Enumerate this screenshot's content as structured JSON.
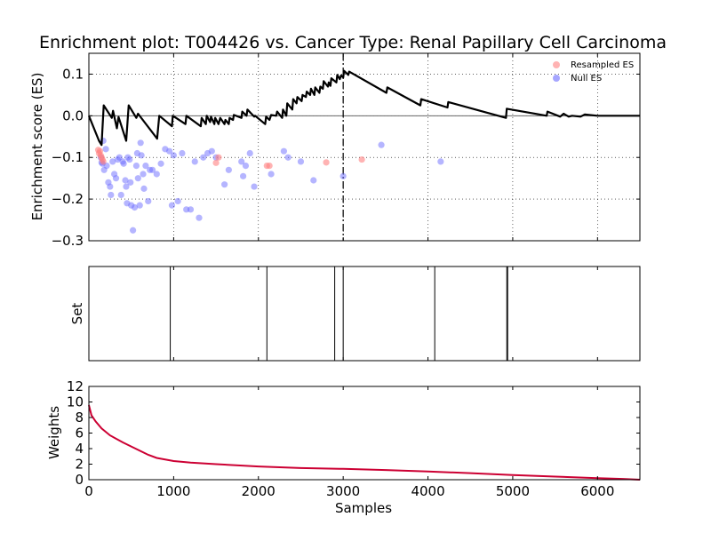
{
  "chart_data": {
    "type": "line",
    "title": "Enrichment plot: T004426 vs. Cancer Type: Renal Papillary Cell Carcinoma",
    "xlabel": "Samples",
    "xlim": [
      0,
      6500
    ],
    "xticks": [
      "0",
      "1000",
      "2000",
      "3000",
      "4000",
      "5000",
      "6000"
    ],
    "colors": {
      "es_line": "#000000",
      "null": "#6b6bff",
      "resampled": "#ff8080",
      "weights": "#cc0033"
    },
    "panels": {
      "es": {
        "ylabel": "Enrichment score (ES)",
        "ylim": [
          -0.3,
          0.15
        ],
        "yticks": [
          "0.1",
          "0.0",
          "−0.1",
          "−0.2",
          "−0.3"
        ],
        "grid": true,
        "legend_position": "top-right",
        "max_es_position": 3000,
        "series": [
          {
            "name": "ES",
            "points": [
              [
                0,
                0
              ],
              [
                120,
                -0.06
              ],
              [
                150,
                -0.07
              ],
              [
                175,
                0.025
              ],
              [
                270,
                -0.005
              ],
              [
                285,
                0.012
              ],
              [
                330,
                -0.03
              ],
              [
                350,
                -0.003
              ],
              [
                440,
                -0.06
              ],
              [
                470,
                0.025
              ],
              [
                560,
                -0.005
              ],
              [
                580,
                0.005
              ],
              [
                805,
                -0.055
              ],
              [
                830,
                0.0
              ],
              [
                980,
                -0.025
              ],
              [
                990,
                0.0
              ],
              [
                1140,
                -0.02
              ],
              [
                1150,
                0.0
              ],
              [
                1320,
                -0.025
              ],
              [
                1330,
                -0.005
              ],
              [
                1380,
                -0.02
              ],
              [
                1390,
                0.0
              ],
              [
                1430,
                -0.015
              ],
              [
                1440,
                -0.002
              ],
              [
                1480,
                -0.02
              ],
              [
                1490,
                -0.005
              ],
              [
                1530,
                -0.02
              ],
              [
                1550,
                -0.005
              ],
              [
                1600,
                -0.02
              ],
              [
                1610,
                -0.01
              ],
              [
                1650,
                -0.02
              ],
              [
                1660,
                -0.005
              ],
              [
                1700,
                -0.01
              ],
              [
                1710,
                0.002
              ],
              [
                1800,
                -0.005
              ],
              [
                1810,
                0.01
              ],
              [
                1860,
                0.0
              ],
              [
                1870,
                0.015
              ],
              [
                1950,
                -0.002
              ],
              [
                1960,
                0.0
              ],
              [
                2080,
                -0.02
              ],
              [
                2090,
                -0.002
              ],
              [
                2130,
                -0.01
              ],
              [
                2150,
                0.002
              ],
              [
                2210,
                0.0
              ],
              [
                2220,
                0.01
              ],
              [
                2280,
                -0.005
              ],
              [
                2290,
                0.015
              ],
              [
                2330,
                0.0
              ],
              [
                2340,
                0.03
              ],
              [
                2400,
                0.015
              ],
              [
                2410,
                0.04
              ],
              [
                2450,
                0.03
              ],
              [
                2460,
                0.045
              ],
              [
                2510,
                0.035
              ],
              [
                2520,
                0.05
              ],
              [
                2560,
                0.045
              ],
              [
                2570,
                0.058
              ],
              [
                2610,
                0.05
              ],
              [
                2620,
                0.065
              ],
              [
                2660,
                0.05
              ],
              [
                2670,
                0.068
              ],
              [
                2720,
                0.055
              ],
              [
                2730,
                0.07
              ],
              [
                2760,
                0.065
              ],
              [
                2770,
                0.083
              ],
              [
                2820,
                0.07
              ],
              [
                2830,
                0.08
              ],
              [
                2850,
                0.072
              ],
              [
                2860,
                0.09
              ],
              [
                2920,
                0.08
              ],
              [
                2930,
                0.098
              ],
              [
                2960,
                0.088
              ],
              [
                2975,
                0.097
              ],
              [
                3000,
                0.092
              ],
              [
                3010,
                0.108
              ],
              [
                3060,
                0.098
              ],
              [
                3070,
                0.106
              ],
              [
                3510,
                0.055
              ],
              [
                3520,
                0.068
              ],
              [
                3910,
                0.025
              ],
              [
                3920,
                0.04
              ],
              [
                4230,
                0.02
              ],
              [
                4240,
                0.033
              ],
              [
                4920,
                -0.005
              ],
              [
                4930,
                0.017
              ],
              [
                5400,
                0.0
              ],
              [
                5410,
                0.01
              ],
              [
                5560,
                -0.002
              ],
              [
                5600,
                0.005
              ],
              [
                5660,
                -0.002
              ],
              [
                5700,
                0.0
              ],
              [
                5800,
                -0.002
              ],
              [
                5850,
                0.003
              ],
              [
                6000,
                0.0
              ],
              [
                6500,
                0.0
              ]
            ]
          },
          {
            "name": "Resampled ES",
            "points": [
              [
                110,
                -0.082
              ],
              [
                120,
                -0.09
              ],
              [
                130,
                -0.085
              ],
              [
                140,
                -0.095
              ],
              [
                150,
                -0.1
              ],
              [
                160,
                -0.105
              ],
              [
                170,
                -0.11
              ],
              [
                1500,
                -0.113
              ],
              [
                1530,
                -0.1
              ],
              [
                2100,
                -0.12
              ],
              [
                2130,
                -0.12
              ],
              [
                2800,
                -0.112
              ],
              [
                3220,
                -0.105
              ]
            ]
          },
          {
            "name": "Null ES",
            "points": [
              [
                140,
                -0.1
              ],
              [
                150,
                -0.112
              ],
              [
                160,
                -0.115
              ],
              [
                170,
                -0.06
              ],
              [
                180,
                -0.13
              ],
              [
                200,
                -0.08
              ],
              [
                210,
                -0.12
              ],
              [
                230,
                -0.16
              ],
              [
                250,
                -0.17
              ],
              [
                260,
                -0.19
              ],
              [
                280,
                -0.11
              ],
              [
                300,
                -0.14
              ],
              [
                320,
                -0.15
              ],
              [
                340,
                -0.105
              ],
              [
                360,
                -0.1
              ],
              [
                380,
                -0.19
              ],
              [
                400,
                -0.11
              ],
              [
                410,
                -0.115
              ],
              [
                430,
                -0.155
              ],
              [
                440,
                -0.17
              ],
              [
                450,
                -0.21
              ],
              [
                460,
                -0.1
              ],
              [
                480,
                -0.105
              ],
              [
                490,
                -0.16
              ],
              [
                500,
                -0.215
              ],
              [
                520,
                -0.275
              ],
              [
                540,
                -0.22
              ],
              [
                560,
                -0.12
              ],
              [
                570,
                -0.09
              ],
              [
                580,
                -0.15
              ],
              [
                600,
                -0.215
              ],
              [
                610,
                -0.065
              ],
              [
                620,
                -0.095
              ],
              [
                640,
                -0.14
              ],
              [
                650,
                -0.175
              ],
              [
                670,
                -0.12
              ],
              [
                700,
                -0.205
              ],
              [
                720,
                -0.13
              ],
              [
                750,
                -0.13
              ],
              [
                800,
                -0.14
              ],
              [
                850,
                -0.115
              ],
              [
                900,
                -0.08
              ],
              [
                950,
                -0.085
              ],
              [
                980,
                -0.215
              ],
              [
                1000,
                -0.095
              ],
              [
                1050,
                -0.205
              ],
              [
                1100,
                -0.09
              ],
              [
                1150,
                -0.225
              ],
              [
                1200,
                -0.225
              ],
              [
                1250,
                -0.11
              ],
              [
                1300,
                -0.245
              ],
              [
                1350,
                -0.1
              ],
              [
                1400,
                -0.09
              ],
              [
                1450,
                -0.085
              ],
              [
                1500,
                -0.1
              ],
              [
                1600,
                -0.165
              ],
              [
                1650,
                -0.13
              ],
              [
                1800,
                -0.11
              ],
              [
                1820,
                -0.145
              ],
              [
                1850,
                -0.12
              ],
              [
                1900,
                -0.09
              ],
              [
                1950,
                -0.17
              ],
              [
                2150,
                -0.14
              ],
              [
                2300,
                -0.085
              ],
              [
                2350,
                -0.1
              ],
              [
                2500,
                -0.11
              ],
              [
                2650,
                -0.155
              ],
              [
                3000,
                -0.145
              ],
              [
                3450,
                -0.07
              ],
              [
                4150,
                -0.11
              ]
            ]
          }
        ]
      },
      "set": {
        "ylabel": "Set",
        "hits": [
          960,
          2100,
          2900,
          3000,
          4080,
          4930,
          4940
        ]
      },
      "weights": {
        "ylabel": "Weights",
        "ylim": [
          0,
          12
        ],
        "yticks": [
          "0",
          "2",
          "4",
          "6",
          "8",
          "10",
          "12"
        ],
        "points": [
          [
            0,
            9.6
          ],
          [
            30,
            8.3
          ],
          [
            80,
            7.5
          ],
          [
            150,
            6.6
          ],
          [
            250,
            5.7
          ],
          [
            400,
            4.8
          ],
          [
            550,
            4.0
          ],
          [
            700,
            3.2
          ],
          [
            800,
            2.8
          ],
          [
            1000,
            2.4
          ],
          [
            1200,
            2.2
          ],
          [
            1500,
            2.0
          ],
          [
            2000,
            1.7
          ],
          [
            2500,
            1.5
          ],
          [
            3000,
            1.4
          ],
          [
            3500,
            1.25
          ],
          [
            4000,
            1.05
          ],
          [
            4500,
            0.85
          ],
          [
            5000,
            0.6
          ],
          [
            5500,
            0.4
          ],
          [
            6000,
            0.2
          ],
          [
            6300,
            0.1
          ],
          [
            6500,
            0.0
          ]
        ]
      }
    }
  }
}
